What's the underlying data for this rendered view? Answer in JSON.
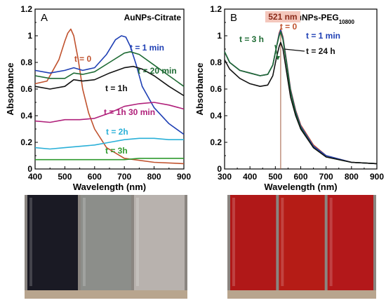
{
  "chart_data": [
    {
      "panel": "A",
      "type": "line",
      "title": "AuNPs-Citrate",
      "xlabel": "Wavelength (nm)",
      "ylabel": "Absorbance",
      "xlim": [
        400,
        900
      ],
      "ylim": [
        0,
        1.2
      ],
      "xticks": [
        "400",
        "500",
        "600",
        "700",
        "800",
        "900"
      ],
      "yticks": [
        "0",
        "0.2",
        "0.4",
        "0.6",
        "0.8",
        "1",
        "1.2"
      ],
      "grid": false,
      "series": [
        {
          "name": "t = 0",
          "color": "#c0522e",
          "x": [
            400,
            440,
            480,
            500,
            510,
            520,
            530,
            545,
            560,
            580,
            600,
            640,
            700,
            800,
            900
          ],
          "y": [
            0.64,
            0.66,
            0.82,
            0.96,
            1.02,
            1.05,
            1.0,
            0.82,
            0.6,
            0.42,
            0.3,
            0.16,
            0.08,
            0.05,
            0.04
          ]
        },
        {
          "name": "t = 1 min",
          "color": "#1e3fb4",
          "x": [
            400,
            450,
            500,
            530,
            560,
            600,
            640,
            670,
            690,
            705,
            720,
            740,
            760,
            800,
            850,
            900
          ],
          "y": [
            0.74,
            0.72,
            0.74,
            0.76,
            0.74,
            0.76,
            0.86,
            0.97,
            1.0,
            0.99,
            0.92,
            0.78,
            0.62,
            0.46,
            0.34,
            0.26
          ]
        },
        {
          "name": "t = 20 min",
          "color": "#1e6b34",
          "x": [
            400,
            450,
            500,
            530,
            560,
            600,
            650,
            700,
            720,
            750,
            800,
            850,
            900
          ],
          "y": [
            0.7,
            0.68,
            0.68,
            0.72,
            0.71,
            0.73,
            0.8,
            0.87,
            0.88,
            0.86,
            0.78,
            0.7,
            0.62
          ]
        },
        {
          "name": "t = 1h",
          "color": "#111111",
          "x": [
            400,
            450,
            500,
            530,
            560,
            600,
            650,
            700,
            730,
            760,
            800,
            850,
            900
          ],
          "y": [
            0.62,
            0.6,
            0.62,
            0.67,
            0.66,
            0.67,
            0.72,
            0.76,
            0.77,
            0.75,
            0.7,
            0.62,
            0.55
          ]
        },
        {
          "name": "t = 1h 30 min",
          "color": "#b0207a",
          "x": [
            400,
            450,
            500,
            550,
            600,
            650,
            700,
            750,
            800,
            850,
            900
          ],
          "y": [
            0.36,
            0.35,
            0.37,
            0.37,
            0.38,
            0.42,
            0.47,
            0.49,
            0.5,
            0.48,
            0.45
          ]
        },
        {
          "name": "t = 2h",
          "color": "#2ab0d8",
          "x": [
            400,
            450,
            500,
            550,
            600,
            650,
            700,
            750,
            800,
            850,
            900
          ],
          "y": [
            0.16,
            0.15,
            0.16,
            0.17,
            0.18,
            0.2,
            0.22,
            0.23,
            0.23,
            0.22,
            0.22
          ]
        },
        {
          "name": "t = 3h",
          "color": "#2e9a2e",
          "x": [
            400,
            450,
            500,
            550,
            600,
            650,
            700,
            750,
            800,
            850,
            900
          ],
          "y": [
            0.07,
            0.07,
            0.07,
            0.07,
            0.07,
            0.07,
            0.07,
            0.08,
            0.08,
            0.08,
            0.08
          ]
        }
      ]
    },
    {
      "panel": "B",
      "type": "line",
      "title": "AuNPs-PEG",
      "title_subscript": "10800",
      "peak_annotation": "521 nm",
      "peak_x": 521,
      "xlabel": "Wavelength (nm)",
      "ylabel": "Absorbance",
      "xlim": [
        300,
        900
      ],
      "ylim": [
        0,
        1.2
      ],
      "xticks": [
        "300",
        "400",
        "500",
        "600",
        "700",
        "800",
        "900"
      ],
      "yticks": [
        "0",
        "0.2",
        "0.4",
        "0.6",
        "0.8",
        "1",
        "1.2"
      ],
      "grid": false,
      "series": [
        {
          "name": "t = 0",
          "color": "#c0522e",
          "x": [
            300,
            320,
            360,
            400,
            440,
            470,
            490,
            505,
            515,
            521,
            530,
            545,
            560,
            580,
            600,
            650,
            700,
            800,
            900
          ],
          "y": [
            0.88,
            0.8,
            0.74,
            0.72,
            0.7,
            0.71,
            0.78,
            0.92,
            1.02,
            1.05,
            0.99,
            0.8,
            0.6,
            0.44,
            0.33,
            0.18,
            0.1,
            0.05,
            0.04
          ]
        },
        {
          "name": "t = 1 min",
          "color": "#1e3fb4",
          "x": [
            300,
            320,
            360,
            400,
            440,
            470,
            490,
            505,
            515,
            521,
            530,
            545,
            560,
            580,
            600,
            650,
            700,
            800,
            900
          ],
          "y": [
            0.88,
            0.8,
            0.74,
            0.72,
            0.7,
            0.71,
            0.78,
            0.92,
            1.01,
            1.04,
            0.98,
            0.79,
            0.59,
            0.43,
            0.32,
            0.17,
            0.1,
            0.05,
            0.04
          ]
        },
        {
          "name": "t = 3 h",
          "color": "#1e6b34",
          "x": [
            300,
            320,
            360,
            400,
            440,
            470,
            490,
            505,
            515,
            521,
            530,
            545,
            560,
            580,
            600,
            650,
            700,
            800,
            900
          ],
          "y": [
            0.88,
            0.8,
            0.74,
            0.72,
            0.7,
            0.71,
            0.78,
            0.92,
            1.0,
            1.03,
            0.97,
            0.78,
            0.58,
            0.42,
            0.31,
            0.16,
            0.09,
            0.05,
            0.04
          ]
        },
        {
          "name": "t = 24 h",
          "color": "#111111",
          "x": [
            300,
            320,
            360,
            400,
            440,
            470,
            490,
            505,
            515,
            521,
            530,
            545,
            560,
            580,
            600,
            650,
            700,
            800,
            900
          ],
          "y": [
            0.82,
            0.75,
            0.68,
            0.64,
            0.62,
            0.63,
            0.7,
            0.84,
            0.92,
            0.95,
            0.9,
            0.72,
            0.54,
            0.4,
            0.3,
            0.16,
            0.09,
            0.05,
            0.04
          ]
        }
      ]
    }
  ],
  "photos": [
    {
      "cuvettes": [
        {
          "color": "#1a1a24"
        },
        {
          "color": "#8c8e8a"
        },
        {
          "color": "#b8b2ae"
        }
      ]
    },
    {
      "cuvettes": [
        {
          "color": "#b01818"
        },
        {
          "color": "#b51c16"
        },
        {
          "color": "#b3181a"
        }
      ]
    }
  ]
}
